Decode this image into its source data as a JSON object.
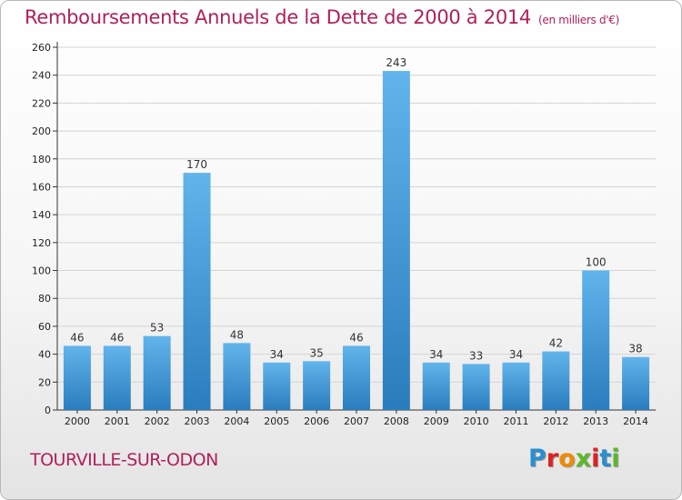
{
  "header": {
    "title": "Remboursements Annuels de la Dette de 2000 à 2014",
    "unit": "(en milliers d'€)"
  },
  "footer": {
    "commune": "TOURVILLE-SUR-ODON",
    "logo": "Proxiti"
  },
  "colors": {
    "title": "#b0205a",
    "bar_top": "#62b4ec",
    "bar_bottom": "#2a7dbd",
    "logo": [
      "#2a8fd0",
      "#e02020",
      "#f08a00",
      "#5cb82a",
      "#e02020",
      "#2a8fd0",
      "#5cb82a"
    ]
  },
  "chart_data": {
    "type": "bar",
    "title": "Remboursements Annuels de la Dette de 2000 à 2014",
    "unit": "(en milliers d'€)",
    "categories": [
      "2000",
      "2001",
      "2002",
      "2003",
      "2004",
      "2005",
      "2006",
      "2007",
      "2008",
      "2009",
      "2010",
      "2011",
      "2012",
      "2013",
      "2014"
    ],
    "values": [
      46,
      46,
      53,
      170,
      48,
      34,
      35,
      46,
      243,
      34,
      33,
      34,
      42,
      100,
      38
    ],
    "ylim": [
      0,
      260
    ],
    "yticks": [
      0,
      20,
      40,
      60,
      80,
      100,
      120,
      140,
      160,
      180,
      200,
      220,
      240,
      260
    ],
    "grid": true,
    "data_labels": true
  }
}
